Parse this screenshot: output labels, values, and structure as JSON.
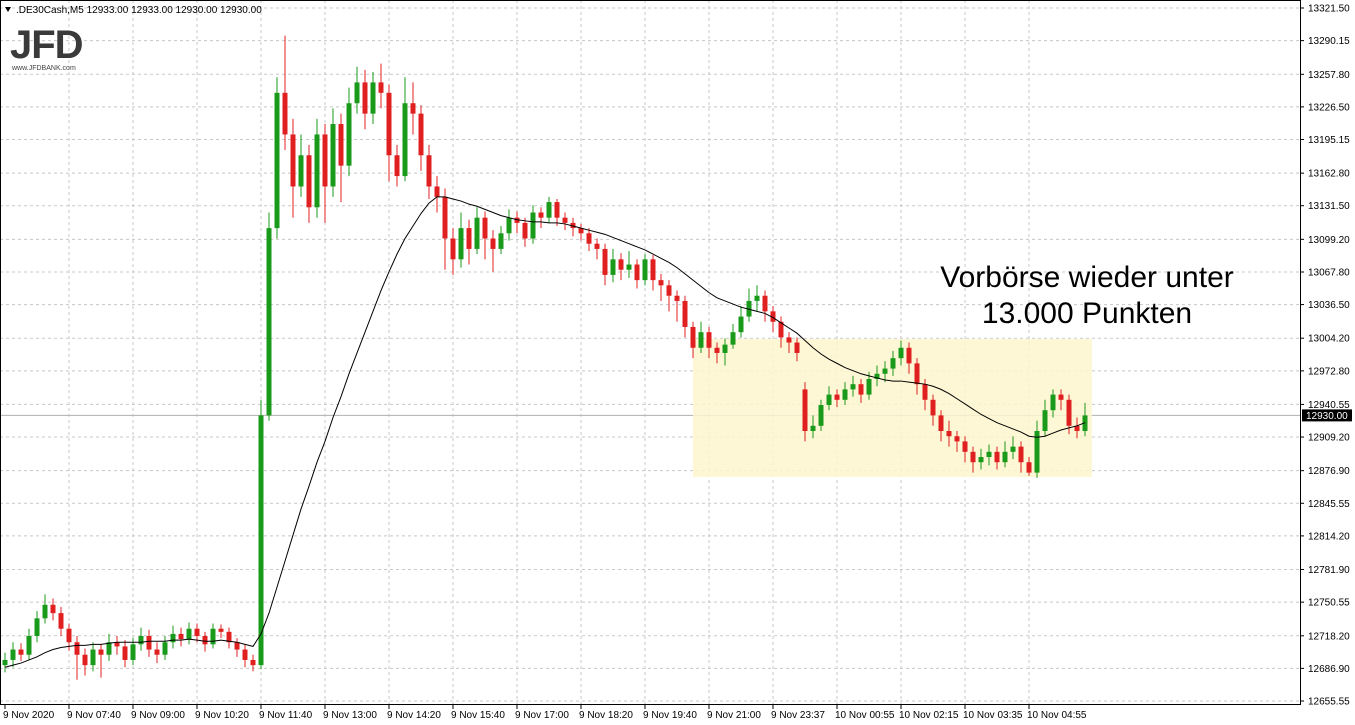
{
  "chart_data": {
    "type": "candlestick",
    "header": ".DE30Cash,M5  12933.00 12933.00 12930.00 12930.00",
    "annotation": [
      "Vorbörse wieder unter",
      "13.000 Punkten"
    ],
    "up_color": "#1a9a1a",
    "down_color": "#e02020",
    "ma_color": "#000000",
    "grid": true,
    "ylim": [
      12651.7,
      13329.2
    ],
    "yticks": [
      {
        "value": 13321.5,
        "label": "13321.50"
      },
      13290.15,
      {
        "value": 13257.8,
        "label": "13257.80"
      },
      {
        "value": 13226.5,
        "label": "13226.50"
      },
      13195.15,
      {
        "value": 13162.8,
        "label": "13162.80"
      },
      {
        "value": 13131.5,
        "label": "13131.50"
      },
      {
        "value": 13099.2,
        "label": "13099.20"
      },
      {
        "value": 13067.8,
        "label": "13067.80"
      },
      {
        "value": 13036.5,
        "label": "13036.50"
      },
      {
        "value": 13004.2,
        "label": "13004.20"
      },
      {
        "value": 12972.8,
        "label": "12972.80"
      },
      12940.55,
      {
        "value": 12909.2,
        "label": "12909.20"
      },
      {
        "value": 12876.9,
        "label": "12876.90"
      },
      12845.55,
      {
        "value": 12814.2,
        "label": "12814.20"
      },
      {
        "value": 12781.9,
        "label": "12781.90"
      },
      12750.55,
      {
        "value": 12718.2,
        "label": "12718.20"
      },
      {
        "value": 12686.9,
        "label": "12686.90"
      },
      12655.55
    ],
    "last_price": {
      "value": 12930,
      "label": "12930.00"
    },
    "categories": [
      "9 Nov 2020",
      null,
      null,
      null,
      null,
      null,
      null,
      null,
      "9 Nov 07:40",
      null,
      null,
      null,
      null,
      null,
      null,
      null,
      "9 Nov 09:00",
      null,
      null,
      null,
      null,
      null,
      null,
      null,
      "9 Nov 10:20",
      null,
      null,
      null,
      null,
      null,
      null,
      null,
      "9 Nov 11:40",
      null,
      null,
      null,
      null,
      null,
      null,
      null,
      "9 Nov 13:00",
      null,
      null,
      null,
      null,
      null,
      null,
      null,
      "9 Nov 14:20",
      null,
      null,
      null,
      null,
      null,
      null,
      null,
      "9 Nov 15:40",
      null,
      null,
      null,
      null,
      null,
      null,
      null,
      "9 Nov 17:00",
      null,
      null,
      null,
      null,
      null,
      null,
      null,
      "9 Nov 18:20",
      null,
      null,
      null,
      null,
      null,
      null,
      null,
      "9 Nov 19:40",
      null,
      null,
      null,
      null,
      null,
      null,
      null,
      "9 Nov 21:00",
      null,
      null,
      null,
      null,
      null,
      null,
      null,
      "9 Nov 23:37",
      null,
      null,
      null,
      null,
      null,
      null,
      null,
      "10 Nov 00:55",
      null,
      null,
      null,
      null,
      null,
      null,
      null,
      "10 Nov 02:15",
      null,
      null,
      null,
      null,
      null,
      null,
      null,
      "10 Nov 03:35",
      null,
      null,
      null,
      null,
      null,
      null,
      null,
      "10 Nov 04:55",
      null,
      null,
      null,
      null,
      null,
      null,
      null
    ],
    "ohlc": [
      [
        12690,
        12702,
        12683,
        12695
      ],
      [
        12695,
        12712,
        12688,
        12705
      ],
      [
        12705,
        12711,
        12694,
        12700
      ],
      [
        12700,
        12725,
        12695,
        12718
      ],
      [
        12718,
        12742,
        12712,
        12735
      ],
      [
        12735,
        12758,
        12730,
        12748
      ],
      [
        12748,
        12754,
        12733,
        12740
      ],
      [
        12740,
        12746,
        12718,
        12725
      ],
      [
        12725,
        12730,
        12704,
        12712
      ],
      [
        12712,
        12718,
        12676,
        12700
      ],
      [
        12700,
        12706,
        12680,
        12690
      ],
      [
        12690,
        12712,
        12684,
        12705
      ],
      [
        12705,
        12710,
        12678,
        12700
      ],
      [
        12700,
        12720,
        12694,
        12712
      ],
      [
        12712,
        12718,
        12700,
        12708
      ],
      [
        12708,
        12714,
        12688,
        12695
      ],
      [
        12695,
        12716,
        12690,
        12710
      ],
      [
        12710,
        12726,
        12704,
        12718
      ],
      [
        12718,
        12724,
        12698,
        12705
      ],
      [
        12705,
        12712,
        12692,
        12700
      ],
      [
        12700,
        12718,
        12695,
        12712
      ],
      [
        12712,
        12728,
        12706,
        12720
      ],
      [
        12720,
        12726,
        12708,
        12715
      ],
      [
        12715,
        12731,
        12710,
        12725
      ],
      [
        12725,
        12730,
        12712,
        12718
      ],
      [
        12718,
        12722,
        12703,
        12710
      ],
      [
        12710,
        12730,
        12706,
        12725
      ],
      [
        12725,
        12729,
        12716,
        12722
      ],
      [
        12722,
        12726,
        12706,
        12712
      ],
      [
        12712,
        12716,
        12698,
        12705
      ],
      [
        12705,
        12710,
        12688,
        12695
      ],
      [
        12695,
        12700,
        12684,
        12690
      ],
      [
        12690,
        12945,
        12686,
        12930
      ],
      [
        12930,
        13125,
        12925,
        13110
      ],
      [
        13110,
        13255,
        13100,
        13240
      ],
      [
        13240,
        13295,
        13185,
        13200
      ],
      [
        13200,
        13215,
        13120,
        13150
      ],
      [
        13150,
        13200,
        13140,
        13180
      ],
      [
        13180,
        13190,
        13115,
        13130
      ],
      [
        13130,
        13215,
        13120,
        13200
      ],
      [
        13200,
        13210,
        13115,
        13150
      ],
      [
        13150,
        13225,
        13140,
        13210
      ],
      [
        13210,
        13220,
        13135,
        13170
      ],
      [
        13170,
        13245,
        13160,
        13230
      ],
      [
        13230,
        13265,
        13220,
        13250
      ],
      [
        13250,
        13262,
        13205,
        13220
      ],
      [
        13220,
        13260,
        13210,
        13250
      ],
      [
        13250,
        13268,
        13225,
        13240
      ],
      [
        13240,
        13248,
        13155,
        13180
      ],
      [
        13180,
        13190,
        13150,
        13160
      ],
      [
        13160,
        13255,
        13155,
        13230
      ],
      [
        13230,
        13250,
        13200,
        13220
      ],
      [
        13220,
        13228,
        13165,
        13180
      ],
      [
        13180,
        13190,
        13138,
        13150
      ],
      [
        13150,
        13160,
        13125,
        13140
      ],
      [
        13140,
        13148,
        13070,
        13100
      ],
      [
        13100,
        13110,
        13065,
        13080
      ],
      [
        13080,
        13125,
        13072,
        13110
      ],
      [
        13110,
        13118,
        13075,
        13090
      ],
      [
        13090,
        13130,
        13085,
        13120
      ],
      [
        13120,
        13126,
        13080,
        13100
      ],
      [
        13100,
        13108,
        13068,
        13090
      ],
      [
        13090,
        13112,
        13085,
        13105
      ],
      [
        13105,
        13128,
        13098,
        13120
      ],
      [
        13120,
        13126,
        13105,
        13115
      ],
      [
        13115,
        13120,
        13092,
        13100
      ],
      [
        13100,
        13132,
        13095,
        13125
      ],
      [
        13125,
        13130,
        13110,
        13120
      ],
      [
        13120,
        13140,
        13115,
        13135
      ],
      [
        13135,
        13138,
        13112,
        13120
      ],
      [
        13120,
        13125,
        13108,
        13115
      ],
      [
        13115,
        13120,
        13102,
        13110
      ],
      [
        13110,
        13114,
        13098,
        13105
      ],
      [
        13105,
        13110,
        13088,
        13095
      ],
      [
        13095,
        13100,
        13080,
        13090
      ],
      [
        13090,
        13095,
        13055,
        13065
      ],
      [
        13065,
        13090,
        13058,
        13080
      ],
      [
        13080,
        13086,
        13060,
        13070
      ],
      [
        13070,
        13088,
        13062,
        13075
      ],
      [
        13075,
        13080,
        13052,
        13060
      ],
      [
        13060,
        13085,
        13055,
        13080
      ],
      [
        13080,
        13084,
        13050,
        13060
      ],
      [
        13060,
        13066,
        13040,
        13055
      ],
      [
        13055,
        13060,
        13030,
        13045
      ],
      [
        13045,
        13050,
        13020,
        13040
      ],
      [
        13040,
        13045,
        13005,
        13015
      ],
      [
        13015,
        13020,
        12985,
        12995
      ],
      [
        12995,
        13020,
        12990,
        13010
      ],
      [
        13010,
        13015,
        12985,
        12995
      ],
      [
        12995,
        13000,
        12980,
        12990
      ],
      [
        12990,
        13004,
        12978,
        12998
      ],
      [
        12998,
        13018,
        12994,
        13010
      ],
      [
        13010,
        13035,
        13005,
        13025
      ],
      [
        13025,
        13052,
        13020,
        13040
      ],
      [
        13040,
        13055,
        13030,
        13045
      ],
      [
        13045,
        13050,
        13020,
        13030
      ],
      [
        13030,
        13035,
        13010,
        13020
      ],
      [
        13020,
        13025,
        12995,
        13005
      ],
      [
        13005,
        13010,
        12990,
        13000
      ],
      [
        13000,
        13005,
        12982,
        12990
      ],
      [
        12955,
        12962,
        12905,
        12915
      ],
      [
        12915,
        12930,
        12908,
        12920
      ],
      [
        12920,
        12945,
        12915,
        12940
      ],
      [
        12940,
        12958,
        12935,
        12950
      ],
      [
        12950,
        12955,
        12938,
        12945
      ],
      [
        12945,
        12962,
        12940,
        12955
      ],
      [
        12955,
        12968,
        12948,
        12960
      ],
      [
        12960,
        12965,
        12942,
        12950
      ],
      [
        12950,
        12972,
        12945,
        12965
      ],
      [
        12965,
        12978,
        12958,
        12970
      ],
      [
        12970,
        12982,
        12962,
        12975
      ],
      [
        12975,
        12992,
        12968,
        12985
      ],
      [
        12985,
        13002,
        12978,
        12995
      ],
      [
        12995,
        13000,
        12970,
        12980
      ],
      [
        12980,
        12985,
        12950,
        12960
      ],
      [
        12960,
        12965,
        12935,
        12945
      ],
      [
        12945,
        12950,
        12920,
        12930
      ],
      [
        12930,
        12935,
        12905,
        12915
      ],
      [
        12915,
        12925,
        12900,
        12910
      ],
      [
        12910,
        12915,
        12895,
        12905
      ],
      [
        12905,
        12910,
        12885,
        12895
      ],
      [
        12895,
        12900,
        12875,
        12885
      ],
      [
        12885,
        12898,
        12878,
        12890
      ],
      [
        12890,
        12902,
        12882,
        12895
      ],
      [
        12895,
        12900,
        12878,
        12885
      ],
      [
        12885,
        12905,
        12880,
        12895
      ],
      [
        12895,
        12910,
        12888,
        12900
      ],
      [
        12900,
        12905,
        12875,
        12885
      ],
      [
        12885,
        12890,
        12872,
        12875
      ],
      [
        12875,
        12925,
        12870,
        12915
      ],
      [
        12915,
        12945,
        12910,
        12935
      ],
      [
        12935,
        12955,
        12928,
        12950
      ],
      [
        12950,
        12955,
        12935,
        12945
      ],
      [
        12945,
        12950,
        12912,
        12920
      ],
      [
        12920,
        12928,
        12908,
        12915
      ],
      [
        12915,
        12942,
        12910,
        12930
      ]
    ],
    "ma": [
      12688,
      12690,
      12692,
      12695,
      12698,
      12702,
      12705,
      12707,
      12708,
      12709,
      12709,
      12710,
      12710,
      12711,
      12712,
      12712,
      12712,
      12712,
      12713,
      12713,
      12713,
      12714,
      12714,
      12715,
      12714,
      12713,
      12713,
      12714,
      12713,
      12712,
      12710,
      12708,
      12720,
      12740,
      12765,
      12790,
      12815,
      12840,
      12862,
      12885,
      12905,
      12928,
      12948,
      12970,
      12990,
      13010,
      13030,
      13050,
      13068,
      13085,
      13100,
      13112,
      13124,
      13134,
      13140,
      13140,
      13138,
      13136,
      13133,
      13131,
      13128,
      13125,
      13122,
      13120,
      13118,
      13117,
      13116,
      13116,
      13115,
      13115,
      13114,
      13112,
      13110,
      13108,
      13106,
      13104,
      13101,
      13098,
      13095,
      13092,
      13089,
      13085,
      13081,
      13077,
      13072,
      13066,
      13060,
      13054,
      13048,
      13043,
      13040,
      13037,
      13034,
      13032,
      13030,
      13028,
      13024,
      13019,
      13014,
      13009,
      13002,
      12995,
      12989,
      12984,
      12980,
      12976,
      12973,
      12970,
      12968,
      12966,
      12964,
      12963,
      12963,
      12962,
      12961,
      12960,
      12958,
      12955,
      12951,
      12946,
      12941,
      12936,
      12931,
      12927,
      12923,
      12920,
      12917,
      12914,
      12910,
      12909,
      12910,
      12913,
      12916,
      12918,
      12920,
      12923
    ]
  },
  "logo": {
    "brand": "JFD",
    "url": "www.JFDBANK.com"
  }
}
